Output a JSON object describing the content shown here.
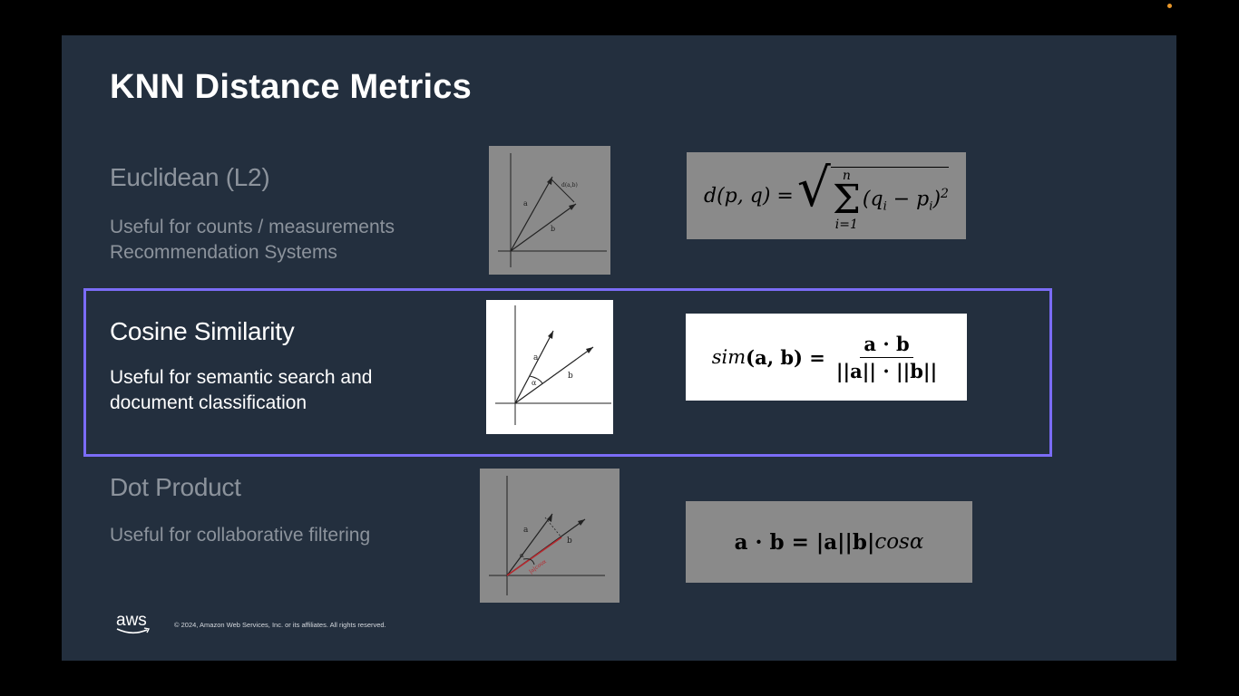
{
  "slide": {
    "title": "KNN Distance Metrics"
  },
  "metrics": [
    {
      "name": "Euclidean (L2)",
      "desc_line1": "Useful for counts / measurements",
      "desc_line2": "Recommendation Systems",
      "diagram_labels": {
        "a": "a",
        "b": "b",
        "d": "d(a,b)"
      },
      "formula": {
        "lhs": "d(p, q) =",
        "sum_top": "n",
        "sum_bottom": "i=1",
        "body": "(q",
        "sub1": "i",
        "minus": " − p",
        "sub2": "i",
        "close": ")",
        "exp": "2"
      }
    },
    {
      "name": "Cosine Similarity",
      "desc_line1": "Useful for semantic search and",
      "desc_line2": "document classification",
      "diagram_labels": {
        "a": "a",
        "b": "b",
        "angle": "α"
      },
      "formula": {
        "lhs_italic": "sim",
        "lhs_args": "(a, b) =",
        "numerator": "a · b",
        "denominator": "||a|| · ||b||"
      }
    },
    {
      "name": "Dot Product",
      "desc_line1": "Useful for collaborative filtering",
      "diagram_labels": {
        "a": "a",
        "b": "b",
        "angle": "α",
        "proj": "|a|cosα"
      },
      "formula": {
        "lhs": "a · b = |a||b|",
        "cos_italic": "cosα"
      }
    }
  ],
  "footer": {
    "logo_text": "aws",
    "copyright": "© 2024, Amazon Web Services, Inc. or its affiliates. All rights reserved."
  },
  "colors": {
    "slide_bg": "#232f3e",
    "highlight": "#7b6cf6",
    "dim_text": "#8c939c"
  }
}
